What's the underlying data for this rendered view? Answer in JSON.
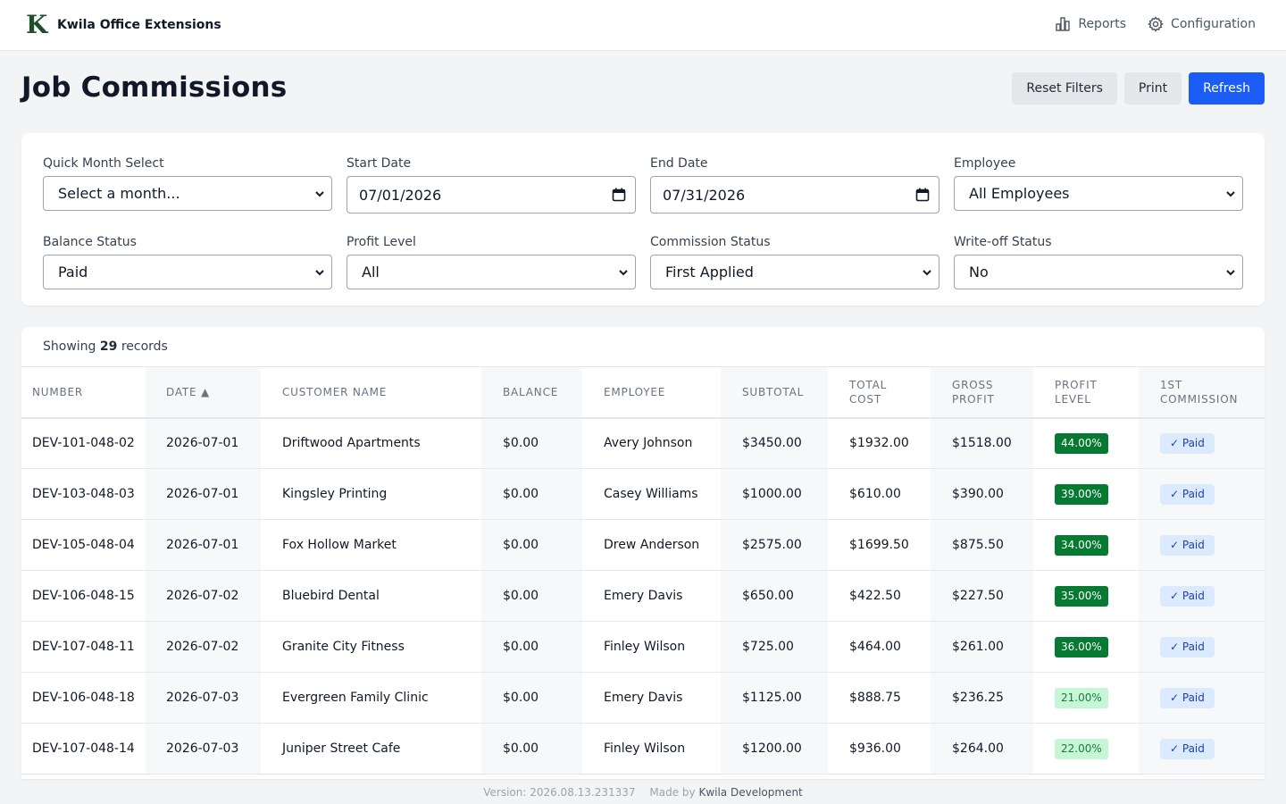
{
  "app": {
    "logo_letter": "K",
    "title": "Kwila Office Extensions",
    "nav": [
      {
        "label": "Reports",
        "icon": "bar-chart-icon"
      },
      {
        "label": "Configuration",
        "icon": "gear-icon"
      }
    ]
  },
  "header": {
    "title": "Job Commissions",
    "buttons": {
      "reset": "Reset Filters",
      "print": "Print",
      "refresh": "Refresh"
    }
  },
  "filters": {
    "quick_month": {
      "label": "Quick Month Select",
      "value": "Select a month..."
    },
    "start_date": {
      "label": "Start Date",
      "value": "07/01/2026"
    },
    "end_date": {
      "label": "End Date",
      "value": "07/31/2026"
    },
    "employee": {
      "label": "Employee",
      "value": "All Employees"
    },
    "balance_status": {
      "label": "Balance Status",
      "value": "Paid"
    },
    "profit_level": {
      "label": "Profit Level",
      "value": "All"
    },
    "commission_status": {
      "label": "Commission Status",
      "value": "First Applied"
    },
    "writeoff_status": {
      "label": "Write-off Status",
      "value": "No"
    }
  },
  "table": {
    "showing_prefix": "Showing",
    "record_count": "29",
    "showing_suffix": "records",
    "columns": [
      "Number",
      "Date ▲",
      "Customer Name",
      "Balance",
      "Employee",
      "Subtotal",
      "Total Cost",
      "Gross Profit",
      "Profit Level",
      "1st Commission"
    ],
    "rows": [
      {
        "number": "DEV-101-048-02",
        "date": "2026-07-01",
        "customer": "Driftwood Apartments",
        "balance": "$0.00",
        "employee": "Avery Johnson",
        "subtotal": "$3450.00",
        "total_cost": "$1932.00",
        "gross_profit": "$1518.00",
        "profit_level": "44.00%",
        "profit_tier": "high",
        "commission": "✓ Paid"
      },
      {
        "number": "DEV-103-048-03",
        "date": "2026-07-01",
        "customer": "Kingsley Printing",
        "balance": "$0.00",
        "employee": "Casey Williams",
        "subtotal": "$1000.00",
        "total_cost": "$610.00",
        "gross_profit": "$390.00",
        "profit_level": "39.00%",
        "profit_tier": "high",
        "commission": "✓ Paid"
      },
      {
        "number": "DEV-105-048-04",
        "date": "2026-07-01",
        "customer": "Fox Hollow Market",
        "balance": "$0.00",
        "employee": "Drew Anderson",
        "subtotal": "$2575.00",
        "total_cost": "$1699.50",
        "gross_profit": "$875.50",
        "profit_level": "34.00%",
        "profit_tier": "high",
        "commission": "✓ Paid"
      },
      {
        "number": "DEV-106-048-15",
        "date": "2026-07-02",
        "customer": "Bluebird Dental",
        "balance": "$0.00",
        "employee": "Emery Davis",
        "subtotal": "$650.00",
        "total_cost": "$422.50",
        "gross_profit": "$227.50",
        "profit_level": "35.00%",
        "profit_tier": "high",
        "commission": "✓ Paid"
      },
      {
        "number": "DEV-107-048-11",
        "date": "2026-07-02",
        "customer": "Granite City Fitness",
        "balance": "$0.00",
        "employee": "Finley Wilson",
        "subtotal": "$725.00",
        "total_cost": "$464.00",
        "gross_profit": "$261.00",
        "profit_level": "36.00%",
        "profit_tier": "high",
        "commission": "✓ Paid"
      },
      {
        "number": "DEV-106-048-18",
        "date": "2026-07-03",
        "customer": "Evergreen Family Clinic",
        "balance": "$0.00",
        "employee": "Emery Davis",
        "subtotal": "$1125.00",
        "total_cost": "$888.75",
        "gross_profit": "$236.25",
        "profit_level": "21.00%",
        "profit_tier": "low",
        "commission": "✓ Paid"
      },
      {
        "number": "DEV-107-048-14",
        "date": "2026-07-03",
        "customer": "Juniper Street Cafe",
        "balance": "$0.00",
        "employee": "Finley Wilson",
        "subtotal": "$1200.00",
        "total_cost": "$936.00",
        "gross_profit": "$264.00",
        "profit_level": "22.00%",
        "profit_tier": "low",
        "commission": "✓ Paid"
      }
    ]
  },
  "footer": {
    "version": "Version: 2026.08.13.231337",
    "made_by": "Made by",
    "company": "Kwila Development"
  },
  "colors": {
    "accent": "#1a5cf5",
    "logo": "#1f4e2c",
    "profit_high": "#057a30",
    "profit_low": "#c6f6d5",
    "paid_badge": "#dbeafe"
  }
}
